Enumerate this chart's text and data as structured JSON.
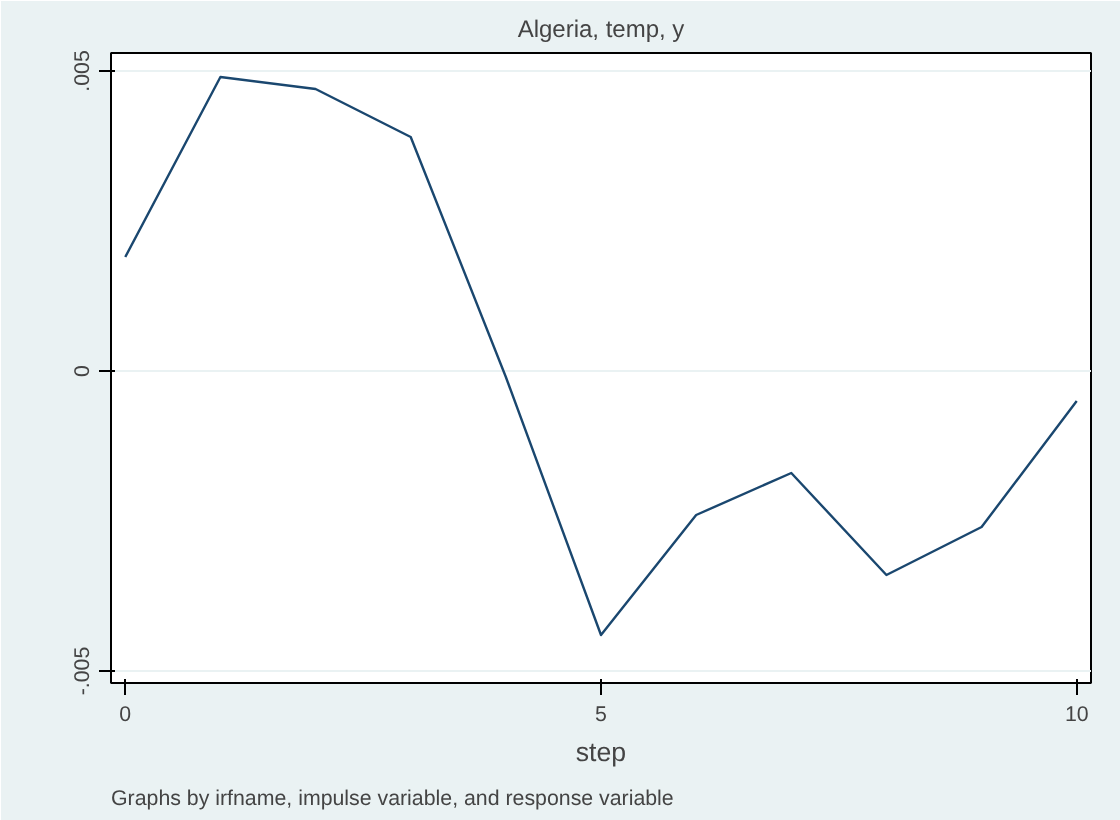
{
  "chart_data": {
    "type": "line",
    "title": "Algeria, temp, y",
    "xlabel": "step",
    "annotations": [
      "Graphs by irfname, impulse variable, and response variable"
    ],
    "x": [
      0,
      1,
      2,
      3,
      4,
      5,
      6,
      7,
      8,
      9,
      10
    ],
    "series": [
      {
        "color": "#1a476f",
        "values": [
          0.0019,
          0.0049,
          0.0047,
          0.0039,
          -0.0001,
          -0.0044,
          -0.0024,
          -0.0017,
          -0.0034,
          -0.0026,
          -0.0005
        ]
      }
    ],
    "xlim": [
      -0.15,
      10.15
    ],
    "ylim": [
      -0.0052,
      0.0053
    ],
    "xticks": [
      0,
      5,
      10
    ],
    "yticks": [
      {
        "value": -0.005,
        "label": "-.005"
      },
      {
        "value": 0,
        "label": "0"
      },
      {
        "value": 0.005,
        "label": ".005"
      }
    ],
    "grid": "y",
    "marker": "none",
    "line_style": "solid"
  }
}
